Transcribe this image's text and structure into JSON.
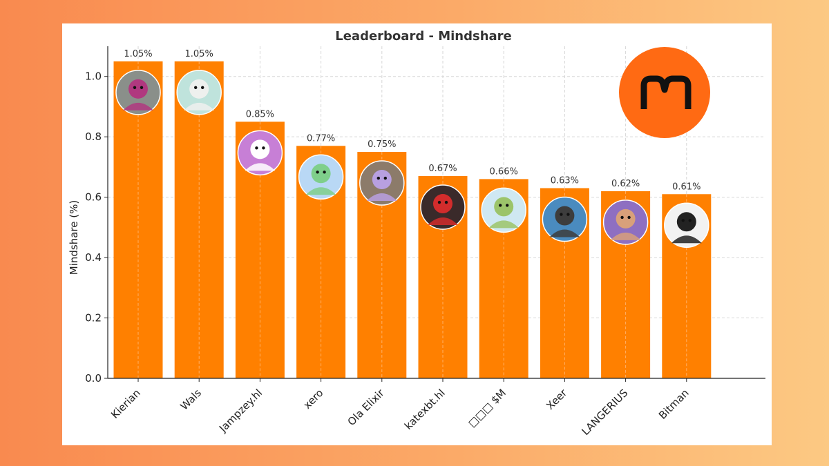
{
  "brand": {
    "accent": "#ff8000",
    "logo_bg": "#ff6a13",
    "logo_glyph": "#111111",
    "logo_name": "mindshare-m-logo-icon"
  },
  "chart_data": {
    "type": "bar",
    "title": "Leaderboard - Mindshare",
    "xlabel": "",
    "ylabel": "Mindshare (%)",
    "ylim": [
      0,
      1.1
    ],
    "yticks": [
      0.0,
      0.2,
      0.4,
      0.6,
      0.8,
      1.0
    ],
    "ytick_labels": [
      "0.0",
      "0.2",
      "0.4",
      "0.6",
      "0.8",
      "1.0"
    ],
    "grid": true,
    "categories": [
      "Kierian",
      "Wals",
      "Jampzey.hl",
      "xero",
      "Ola Elixir",
      "katexbt.hl",
      "□□□ $M",
      "Xeer",
      "LANGERIUS",
      "Bitman"
    ],
    "values": [
      1.05,
      1.05,
      0.85,
      0.77,
      0.75,
      0.67,
      0.66,
      0.63,
      0.62,
      0.61
    ],
    "value_labels": [
      "1.05%",
      "1.05%",
      "0.85%",
      "0.77%",
      "0.75%",
      "0.67%",
      "0.66%",
      "0.63%",
      "0.62%",
      "0.61%"
    ],
    "bar_color": "#ff8000",
    "avatars": [
      {
        "icon": "punk-avatar-icon",
        "bg": "#8a8f8a",
        "fg": "#b0387f"
      },
      {
        "icon": "bear-sunglasses-avatar-icon",
        "bg": "#bfe3dc",
        "fg": "#eef0ee"
      },
      {
        "icon": "penguin-elf-avatar-icon",
        "bg": "#c77fd6",
        "fg": "#ffffff"
      },
      {
        "icon": "penguin-hat-avatar-icon",
        "bg": "#b9d8f5",
        "fg": "#7fcf8b"
      },
      {
        "icon": "penguin-avatar-icon",
        "bg": "#8c7b6a",
        "fg": "#b8a0e0"
      },
      {
        "icon": "girl-avatar-icon",
        "bg": "#3a2a2a",
        "fg": "#d22c2c"
      },
      {
        "icon": "dinosaur-avatar-icon",
        "bg": "#cfe8f2",
        "fg": "#9cc46a"
      },
      {
        "icon": "pixel-hat-avatar-icon",
        "bg": "#4a8bbf",
        "fg": "#3d3d3d"
      },
      {
        "icon": "pixel-cigar-avatar-icon",
        "bg": "#8e6fc1",
        "fg": "#d8a07a"
      },
      {
        "icon": "anime-sketch-avatar-icon",
        "bg": "#f2f2f2",
        "fg": "#222222"
      }
    ]
  }
}
